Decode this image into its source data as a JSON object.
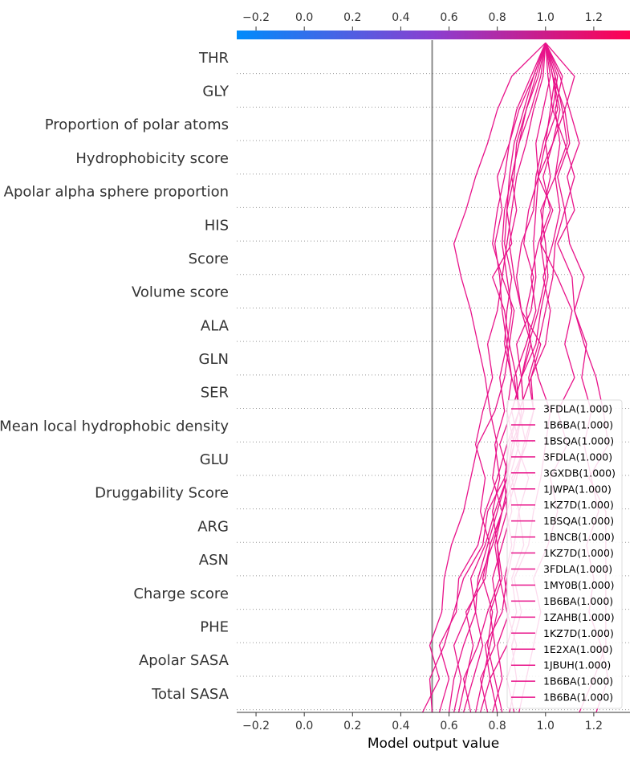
{
  "chart_data": {
    "type": "line",
    "subtype": "decision-plot",
    "xlabel": "Model output value",
    "ylabel": "",
    "title": "",
    "xlim": [
      -0.28,
      1.35
    ],
    "ticks": [
      -0.2,
      0.0,
      0.2,
      0.4,
      0.6,
      0.8,
      1.0,
      1.2
    ],
    "tick_labels": [
      "−0.2",
      "0.0",
      "0.2",
      "0.4",
      "0.6",
      "0.8",
      "1.0",
      "1.2"
    ],
    "base_value": 0.53,
    "features": [
      "THR",
      "GLY",
      "Proportion of polar atoms",
      "Hydrophobicity score",
      "Apolar alpha sphere proportion",
      "HIS",
      "Score",
      "Volume score",
      "ALA",
      "GLN",
      "SER",
      "Mean local hydrophobic density",
      "GLU",
      "Druggability Score",
      "ARG",
      "ASN",
      "Charge score",
      "PHE",
      "Apolar SASA",
      "Total SASA"
    ],
    "colorbar": {
      "from": "#008bfb",
      "mid": "#8a3fd0",
      "to": "#ff0052",
      "range": [
        -0.28,
        1.35
      ]
    },
    "line_color": "#e8138a",
    "grid": "dotted horizontal lines between features",
    "legend_position": "bottom-right",
    "series": [
      {
        "name": "3FDLA(1.000)",
        "x": [
          0.49,
          0.56,
          0.52,
          0.57,
          0.58,
          0.61,
          0.66,
          0.69,
          0.72,
          0.79,
          0.83,
          0.85,
          0.83,
          0.78,
          0.86,
          0.84,
          0.87,
          0.88,
          0.92,
          0.97,
          1.0
        ]
      },
      {
        "name": "1B6BA(1.000)",
        "x": [
          0.53,
          0.52,
          0.58,
          0.62,
          0.66,
          0.74,
          0.76,
          0.83,
          0.85,
          0.89,
          0.94,
          0.98,
          0.9,
          0.88,
          0.9,
          0.95,
          0.96,
          0.99,
          1.03,
          1.05,
          1.0
        ]
      },
      {
        "name": "1BSQA(1.000)",
        "x": [
          0.56,
          0.6,
          0.56,
          0.63,
          0.64,
          0.72,
          0.75,
          0.8,
          0.84,
          0.89,
          0.87,
          0.92,
          0.96,
          0.94,
          0.97,
          1.02,
          0.99,
          1.03,
          1.06,
          1.03,
          1.0
        ]
      },
      {
        "name": "3FDLA(1.000)",
        "x": [
          0.6,
          0.62,
          0.66,
          0.71,
          0.69,
          0.75,
          0.79,
          0.84,
          0.87,
          0.91,
          0.9,
          0.96,
          0.98,
          1.01,
          1.0,
          0.98,
          1.04,
          1.06,
          1.04,
          1.07,
          1.0
        ]
      },
      {
        "name": "3GXDB(1.000)",
        "x": [
          0.62,
          0.65,
          0.62,
          0.68,
          0.73,
          0.78,
          0.82,
          0.85,
          0.81,
          0.86,
          0.9,
          0.88,
          0.94,
          0.96,
          0.95,
          0.96,
          0.97,
          1.0,
          1.02,
          1.04,
          1.0
        ]
      },
      {
        "name": "1JWPA(1.000)",
        "x": [
          0.64,
          0.67,
          0.7,
          0.67,
          0.75,
          0.77,
          0.82,
          0.87,
          0.92,
          0.95,
          0.94,
          1.0,
          1.02,
          0.99,
          1.03,
          1.06,
          1.04,
          1.09,
          1.07,
          1.04,
          1.0
        ]
      },
      {
        "name": "1KZ7D(1.000)",
        "x": [
          0.66,
          0.7,
          0.74,
          0.71,
          0.72,
          0.76,
          0.8,
          0.84,
          0.86,
          0.91,
          0.9,
          0.93,
          0.97,
          1.0,
          0.98,
          0.99,
          1.02,
          1.0,
          1.05,
          1.03,
          1.0
        ]
      },
      {
        "name": "1BSQA(1.000)",
        "x": [
          0.69,
          0.66,
          0.72,
          0.76,
          0.81,
          0.8,
          0.84,
          0.88,
          0.91,
          0.95,
          0.93,
          0.97,
          1.0,
          1.03,
          1.04,
          1.08,
          1.05,
          1.1,
          1.08,
          1.03,
          1.0
        ]
      },
      {
        "name": "1BNCB(1.000)",
        "x": [
          0.71,
          0.74,
          0.77,
          0.8,
          0.78,
          0.82,
          0.86,
          0.85,
          0.89,
          0.86,
          0.9,
          0.94,
          0.92,
          0.95,
          0.91,
          0.93,
          0.97,
          0.96,
          0.99,
          1.02,
          1.0
        ]
      },
      {
        "name": "1KZ7D(1.000)",
        "x": [
          0.73,
          0.77,
          0.75,
          0.82,
          0.84,
          0.87,
          0.89,
          0.86,
          0.92,
          0.89,
          0.88,
          0.85,
          0.87,
          0.82,
          0.84,
          0.86,
          0.88,
          0.92,
          0.95,
          0.99,
          1.0
        ]
      },
      {
        "name": "3FDLA(1.000)",
        "x": [
          0.76,
          0.73,
          0.79,
          0.77,
          0.82,
          0.8,
          0.78,
          0.81,
          0.79,
          0.83,
          0.81,
          0.84,
          0.86,
          0.84,
          0.82,
          0.83,
          0.86,
          0.89,
          0.94,
          0.98,
          1.0
        ]
      },
      {
        "name": "1MY0B(1.000)",
        "x": [
          0.78,
          0.82,
          0.8,
          0.85,
          0.83,
          0.86,
          0.84,
          0.83,
          0.87,
          0.84,
          0.86,
          0.83,
          0.84,
          0.86,
          0.83,
          0.84,
          0.85,
          0.87,
          0.91,
          0.95,
          1.0
        ]
      },
      {
        "name": "1B6BA(1.000)",
        "x": [
          0.8,
          0.77,
          0.84,
          0.88,
          0.86,
          0.91,
          0.89,
          0.93,
          0.88,
          0.9,
          0.86,
          0.84,
          0.82,
          0.81,
          0.79,
          0.82,
          0.8,
          0.85,
          0.88,
          0.94,
          1.0
        ]
      },
      {
        "name": "1ZAHB(1.000)",
        "x": [
          0.82,
          0.79,
          0.76,
          0.78,
          0.74,
          0.77,
          0.73,
          0.75,
          0.71,
          0.74,
          0.78,
          0.76,
          0.8,
          0.82,
          0.78,
          0.8,
          0.83,
          0.85,
          0.89,
          0.95,
          1.0
        ]
      },
      {
        "name": "1KZ7D(1.000)",
        "x": [
          0.85,
          0.88,
          0.86,
          0.9,
          0.87,
          0.93,
          0.95,
          0.98,
          1.0,
          1.02,
          0.97,
          0.94,
          0.9,
          0.87,
          0.85,
          0.88,
          0.86,
          0.89,
          0.92,
          0.96,
          1.0
        ]
      },
      {
        "name": "1E2XA(1.000)",
        "x": [
          0.87,
          0.84,
          0.88,
          0.84,
          0.81,
          0.79,
          0.82,
          0.78,
          0.8,
          0.77,
          0.75,
          0.72,
          0.69,
          0.65,
          0.62,
          0.67,
          0.71,
          0.76,
          0.8,
          0.86,
          1.0
        ]
      },
      {
        "name": "1JBUH(1.000)",
        "x": [
          0.89,
          0.92,
          0.95,
          0.98,
          0.95,
          1.01,
          1.05,
          1.02,
          1.09,
          1.05,
          1.12,
          1.08,
          1.11,
          1.05,
          0.98,
          1.03,
          0.97,
          1.03,
          1.08,
          1.12,
          1.0
        ]
      },
      {
        "name": "1B6BA(1.000)",
        "x": [
          1.14,
          1.2,
          1.25,
          1.25,
          1.25,
          1.25,
          1.25,
          1.18,
          1.26,
          1.24,
          1.21,
          1.16,
          1.12,
          1.11,
          1.05,
          1.12,
          1.09,
          1.14,
          1.1,
          1.06,
          1.0
        ]
      },
      {
        "name": "1B6BA(1.000)",
        "x": [
          1.21,
          1.26,
          1.23,
          1.18,
          1.2,
          1.17,
          1.22,
          1.19,
          1.16,
          1.19,
          1.15,
          1.17,
          1.12,
          1.16,
          1.1,
          1.08,
          1.12,
          1.08,
          1.03,
          1.01,
          1.0
        ]
      }
    ]
  }
}
